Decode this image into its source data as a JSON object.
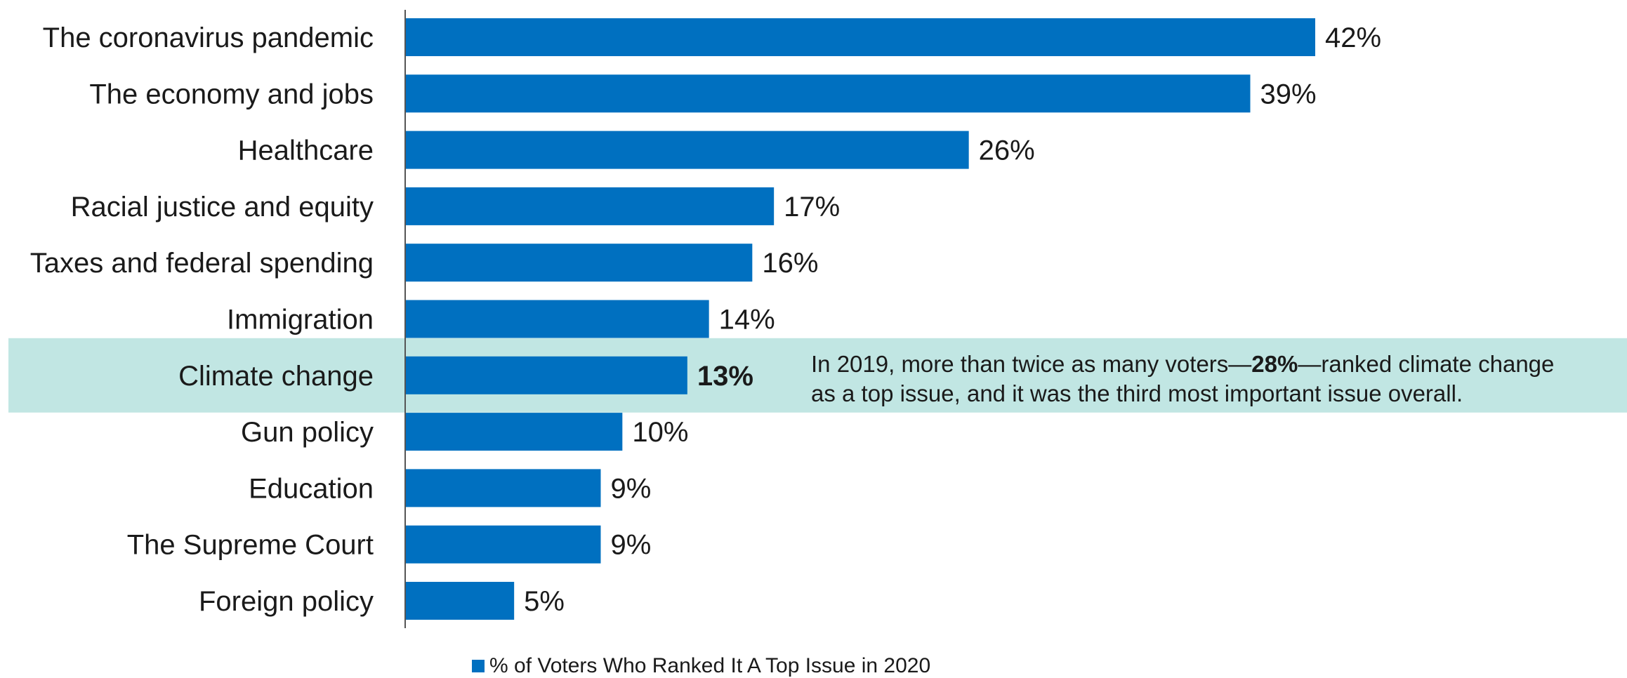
{
  "chart_data": {
    "type": "bar",
    "orientation": "horizontal",
    "title": "",
    "xlabel": "",
    "ylabel": "",
    "xlim": [
      0,
      42
    ],
    "categories": [
      "The coronavirus pandemic",
      "The economy and jobs",
      "Healthcare",
      "Racial justice and equity",
      "Taxes and federal spending",
      "Immigration",
      "Climate change",
      "Gun policy",
      "Education",
      "The Supreme Court",
      "Foreign policy"
    ],
    "series": [
      {
        "name": "% of Voters Who Ranked It A Top Issue in 2020",
        "values": [
          42,
          39,
          26,
          17,
          16,
          14,
          13,
          10,
          9,
          9,
          5
        ],
        "color": "#0070c0"
      }
    ],
    "value_labels": [
      "42%",
      "39%",
      "26%",
      "17%",
      "16%",
      "14%",
      "13%",
      "10%",
      "9%",
      "9%",
      "5%"
    ],
    "highlight": {
      "category": "Climate change",
      "band_color": "#c1e6e3",
      "annotation": {
        "parts": [
          {
            "text": "In 2019, more than twice as many voters—",
            "bold": false
          },
          {
            "text": "28%",
            "bold": true
          },
          {
            "text": "—ranked climate change",
            "bold": false
          }
        ],
        "line2": "as a top issue, and it was the third most important issue overall."
      }
    },
    "legend": {
      "position": "bottom-center",
      "entries": [
        {
          "label": "% of Voters Who Ranked It A Top Issue in 2020",
          "color": "#0070c0"
        }
      ]
    },
    "grid": false
  }
}
